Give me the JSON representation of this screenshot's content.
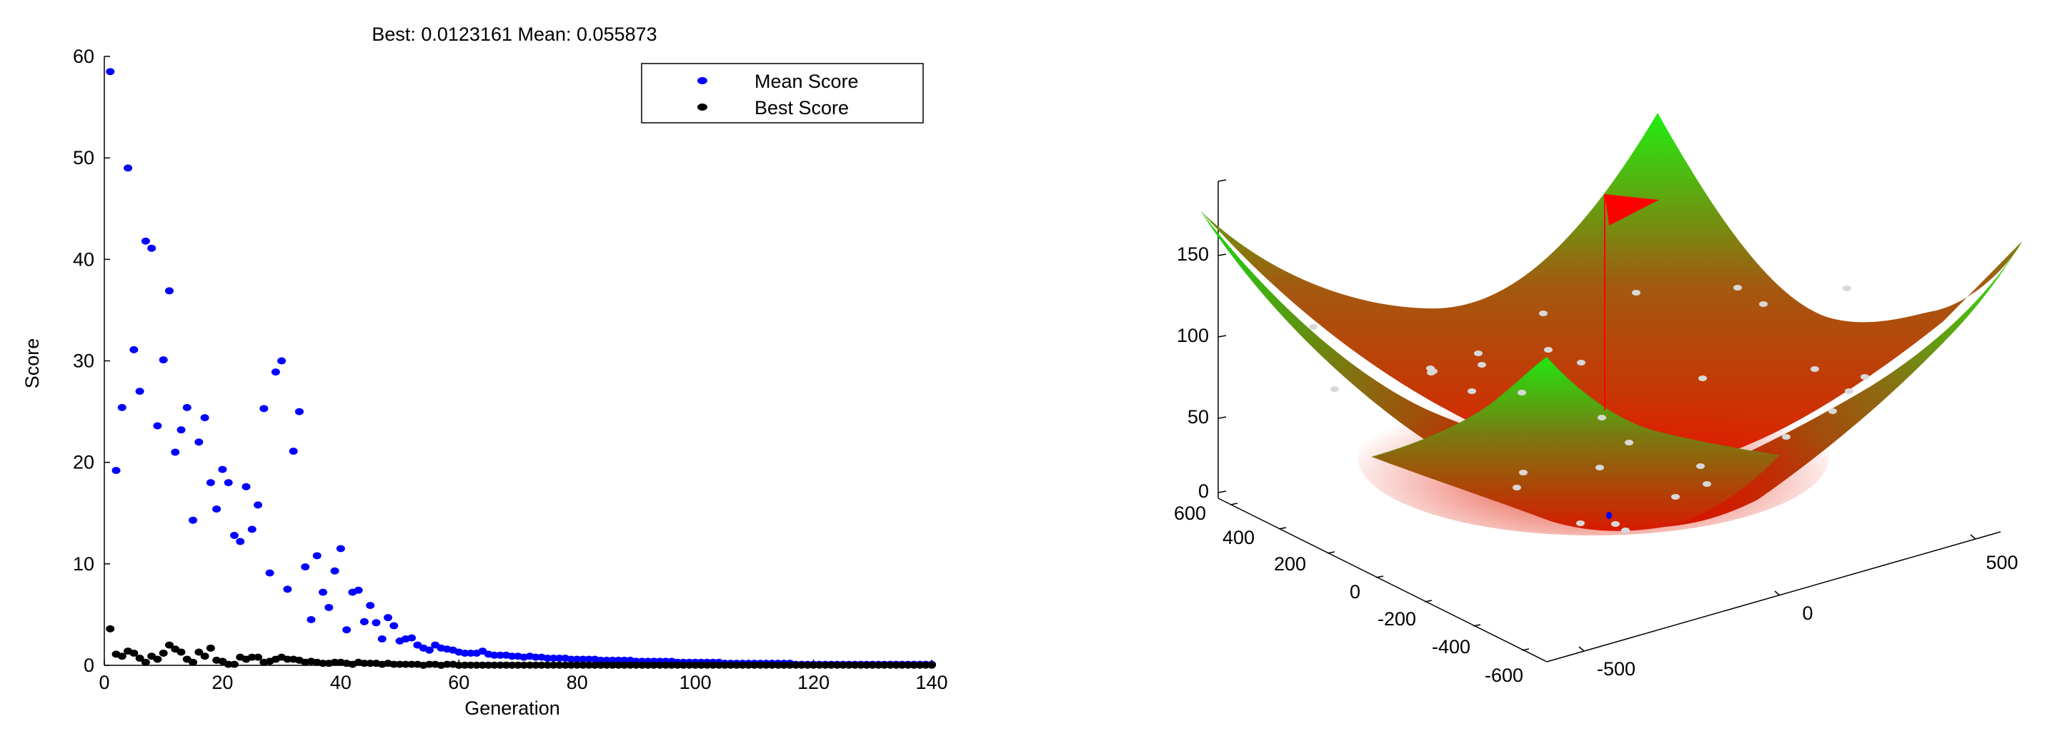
{
  "chart_data": [
    {
      "type": "scatter",
      "title": "Best: 0.0123161 Mean: 0.055873",
      "xlabel": "Generation",
      "ylabel": "Score",
      "xlim": [
        0,
        140
      ],
      "ylim": [
        0,
        60
      ],
      "xticks": [
        "0",
        "20",
        "40",
        "60",
        "80",
        "100",
        "120",
        "140"
      ],
      "yticks": [
        "0",
        "10",
        "20",
        "30",
        "40",
        "50",
        "60"
      ],
      "grid": false,
      "legend": {
        "position": "top-right",
        "entries": [
          "Mean Score",
          "Best Score"
        ]
      },
      "colors": {
        "mean": "#0000ff",
        "best": "#000000"
      },
      "series": [
        {
          "name": "Mean Score",
          "x": [
            1,
            2,
            3,
            4,
            5,
            6,
            7,
            8,
            9,
            10,
            11,
            12,
            13,
            14,
            15,
            16,
            17,
            18,
            19,
            20,
            21,
            22,
            23,
            24,
            25,
            26,
            27,
            28,
            29,
            30,
            31,
            32,
            33,
            34,
            35,
            36,
            37,
            38,
            39,
            40,
            41,
            42,
            43,
            44,
            45,
            46,
            47,
            48,
            49,
            50,
            51,
            52,
            53,
            54,
            55,
            56,
            57,
            58,
            59,
            60,
            61,
            62,
            63,
            64,
            65,
            66,
            67,
            68,
            69,
            70,
            71,
            72,
            73,
            74,
            75,
            76,
            77,
            78,
            79,
            80,
            81,
            82,
            83,
            84,
            85,
            86,
            87,
            88,
            89,
            90,
            91,
            92,
            93,
            94,
            95,
            96,
            97,
            98,
            99,
            100,
            101,
            102,
            103,
            104,
            105,
            106,
            107,
            108,
            109,
            110,
            111,
            112,
            113,
            114,
            115,
            116,
            117,
            118,
            119,
            120,
            121,
            122,
            123,
            124,
            125,
            126,
            127,
            128,
            129,
            130,
            131,
            132,
            133,
            134,
            135,
            136,
            137,
            138,
            139,
            140
          ],
          "y": [
            58.5,
            19.2,
            25.4,
            49.0,
            31.1,
            27.0,
            41.8,
            41.1,
            23.6,
            30.1,
            36.9,
            21.0,
            23.2,
            25.4,
            14.3,
            22.0,
            24.4,
            18.0,
            15.4,
            19.3,
            18.0,
            12.8,
            12.2,
            17.6,
            13.4,
            15.8,
            25.3,
            9.1,
            28.9,
            30.0,
            7.5,
            21.1,
            25.0,
            9.7,
            4.5,
            10.8,
            7.2,
            5.7,
            9.3,
            11.5,
            3.5,
            7.2,
            7.4,
            4.3,
            5.9,
            4.2,
            2.6,
            4.7,
            3.9,
            2.4,
            2.6,
            2.7,
            2.0,
            1.7,
            1.5,
            2.0,
            1.7,
            1.6,
            1.5,
            1.3,
            1.2,
            1.2,
            1.2,
            1.4,
            1.1,
            1.0,
            1.0,
            1.0,
            0.9,
            0.9,
            0.8,
            0.9,
            0.8,
            0.8,
            0.7,
            0.7,
            0.7,
            0.7,
            0.6,
            0.6,
            0.6,
            0.6,
            0.6,
            0.5,
            0.5,
            0.5,
            0.5,
            0.5,
            0.5,
            0.4,
            0.4,
            0.4,
            0.4,
            0.4,
            0.4,
            0.4,
            0.3,
            0.3,
            0.3,
            0.3,
            0.3,
            0.3,
            0.3,
            0.3,
            0.2,
            0.2,
            0.2,
            0.2,
            0.2,
            0.2,
            0.2,
            0.2,
            0.2,
            0.2,
            0.2,
            0.2,
            0.1,
            0.1,
            0.1,
            0.1,
            0.1,
            0.1,
            0.1,
            0.1,
            0.1,
            0.1,
            0.1,
            0.1,
            0.1,
            0.1,
            0.1,
            0.1,
            0.1,
            0.1,
            0.1,
            0.1,
            0.1,
            0.1,
            0.1,
            0.1
          ]
        },
        {
          "name": "Best Score",
          "x": [
            1,
            2,
            3,
            4,
            5,
            6,
            7,
            8,
            9,
            10,
            11,
            12,
            13,
            14,
            15,
            16,
            17,
            18,
            19,
            20,
            21,
            22,
            23,
            24,
            25,
            26,
            27,
            28,
            29,
            30,
            31,
            32,
            33,
            34,
            35,
            36,
            37,
            38,
            39,
            40,
            41,
            42,
            43,
            44,
            45,
            46,
            47,
            48,
            49,
            50,
            51,
            52,
            53,
            54,
            55,
            56,
            57,
            58,
            59,
            60
          ],
          "y": [
            3.6,
            1.1,
            0.9,
            1.4,
            1.2,
            0.7,
            0.3,
            0.9,
            0.6,
            1.2,
            2.0,
            1.6,
            1.3,
            0.6,
            0.3,
            1.3,
            0.9,
            1.7,
            0.5,
            0.4,
            0.1,
            0.1,
            0.8,
            0.6,
            0.8,
            0.8,
            0.3,
            0.4,
            0.6,
            0.8,
            0.6,
            0.6,
            0.5,
            0.3,
            0.4,
            0.3,
            0.2,
            0.2,
            0.3,
            0.3,
            0.2,
            0.1,
            0.3,
            0.2,
            0.2,
            0.2,
            0.1,
            0.2,
            0.1,
            0.1,
            0.1,
            0.1,
            0.1,
            0.0,
            0.1,
            0.1,
            0.0,
            0.1,
            0.1,
            0.0
          ]
        }
      ]
    },
    {
      "type": "surface",
      "title": "",
      "zlim": [
        0,
        180
      ],
      "zticks": [
        "0",
        "50",
        "100",
        "150"
      ],
      "yticks": [
        "-600",
        "-400",
        "-200",
        "0",
        "200",
        "400",
        "600"
      ],
      "xticks": [
        "-500",
        "0",
        "500"
      ],
      "grid": false,
      "colors": {
        "low": "#ff0000",
        "high": "#00ff00",
        "flag": "#ff0000",
        "points": "#d8d8d8"
      }
    }
  ]
}
